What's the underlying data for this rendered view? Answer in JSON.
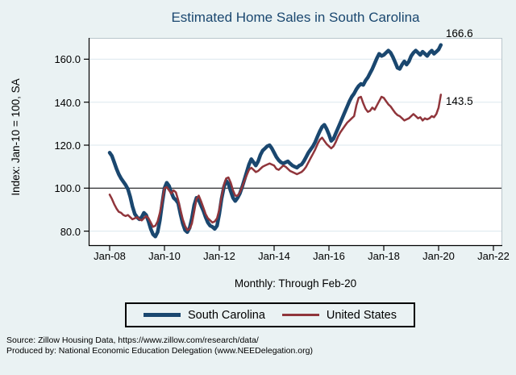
{
  "title": "Estimated Home Sales in South Carolina",
  "caption": "Monthly: Through Feb-20",
  "source": {
    "line1": "Source: Zillow Housing Data, https://www.zillow.com/research/data/",
    "line2": "Produced by: National Economic Education Delegation (www.NEEDelegation.org)"
  },
  "colors": {
    "background": "#eaf2f3",
    "plot_background": "#ffffff",
    "gridline": "#dbe7ee",
    "reference_line": "#1a1a1a",
    "axis": "#000000",
    "title": "#1a476f",
    "south_carolina": "#1a476f",
    "united_states": "#90353b"
  },
  "legend": {
    "items": [
      {
        "label": "South Carolina",
        "color": "#1a476f",
        "thickness": 5
      },
      {
        "label": "United States",
        "color": "#90353b",
        "thickness": 3
      }
    ]
  },
  "chart_data": {
    "type": "line",
    "title": "Estimated Home Sales in South Carolina",
    "xlabel": "",
    "ylabel": "Index: Jan-10 = 100, SA",
    "frequency": "monthly",
    "x_start": "Jan-2008",
    "x_end": "Feb-2020",
    "x_tick_labels": [
      "Jan-08",
      "Jan-10",
      "Jan-12",
      "Jan-14",
      "Jan-16",
      "Jan-18",
      "Jan-20",
      "Jan-22"
    ],
    "x_tick_month_index": [
      0,
      24,
      48,
      72,
      96,
      120,
      144,
      168
    ],
    "y_ticks": [
      80,
      100,
      120,
      140,
      160
    ],
    "y_tick_labels": [
      "80.0",
      "100.0",
      "120.0",
      "140.0",
      "160.0"
    ],
    "ylim": [
      73,
      170
    ],
    "grid": true,
    "reference_line_y": 100,
    "legend_position": "bottom",
    "end_labels": [
      "166.6",
      "143.5"
    ],
    "series": [
      {
        "name": "South Carolina",
        "color": "#1a476f",
        "width": 4.5,
        "values": [
          116.5,
          115.0,
          112.0,
          109.0,
          106.5,
          104.5,
          103.0,
          101.5,
          99.5,
          96.0,
          91.5,
          88.0,
          86.5,
          85.5,
          86.5,
          88.5,
          87.5,
          84.5,
          81.0,
          78.5,
          77.5,
          79.5,
          85.0,
          93.0,
          100.0,
          102.5,
          101.0,
          98.0,
          95.5,
          94.5,
          93.0,
          88.0,
          83.5,
          80.5,
          79.5,
          81.5,
          86.0,
          92.0,
          95.5,
          94.5,
          92.0,
          89.5,
          86.5,
          84.0,
          82.5,
          82.0,
          81.0,
          82.5,
          88.0,
          95.0,
          100.5,
          103.5,
          102.0,
          98.5,
          95.5,
          94.0,
          95.5,
          97.5,
          100.5,
          104.0,
          107.5,
          111.0,
          113.5,
          112.0,
          110.5,
          112.5,
          115.5,
          117.5,
          118.5,
          119.5,
          120.0,
          118.5,
          116.5,
          114.5,
          113.0,
          112.0,
          111.5,
          112.0,
          112.5,
          111.5,
          110.5,
          110.0,
          109.5,
          110.5,
          111.0,
          112.5,
          114.5,
          116.5,
          118.0,
          119.5,
          121.5,
          124.0,
          126.5,
          128.5,
          129.5,
          127.5,
          125.0,
          122.0,
          123.0,
          125.5,
          128.0,
          130.5,
          133.0,
          135.5,
          138.0,
          140.5,
          142.5,
          144.0,
          146.0,
          147.5,
          148.5,
          148.0,
          150.0,
          151.5,
          153.5,
          155.5,
          158.0,
          160.5,
          162.5,
          161.5,
          162.0,
          163.0,
          164.0,
          163.0,
          161.0,
          158.5,
          156.0,
          155.5,
          157.5,
          159.0,
          157.5,
          159.0,
          161.5,
          163.0,
          164.0,
          163.0,
          162.0,
          163.5,
          162.5,
          161.5,
          163.0,
          164.0,
          162.5,
          163.5,
          164.5,
          166.6
        ]
      },
      {
        "name": "United States",
        "color": "#90353b",
        "width": 2.5,
        "values": [
          97.0,
          95.0,
          92.5,
          90.5,
          89.0,
          88.5,
          87.5,
          87.0,
          87.5,
          86.5,
          85.5,
          86.0,
          86.5,
          85.5,
          85.0,
          86.0,
          87.0,
          86.0,
          84.0,
          82.0,
          82.5,
          84.5,
          88.5,
          94.0,
          100.0,
          100.5,
          99.0,
          97.5,
          99.0,
          98.0,
          94.5,
          90.0,
          85.5,
          82.5,
          80.5,
          81.0,
          83.5,
          89.0,
          95.0,
          96.5,
          94.0,
          91.0,
          88.0,
          86.0,
          85.0,
          84.0,
          84.5,
          86.0,
          90.0,
          96.0,
          101.5,
          104.5,
          105.0,
          102.5,
          99.0,
          96.5,
          96.5,
          98.0,
          100.5,
          103.5,
          106.0,
          108.5,
          109.5,
          108.5,
          107.5,
          108.0,
          109.0,
          110.0,
          110.5,
          111.0,
          111.5,
          111.0,
          110.5,
          109.0,
          108.5,
          109.5,
          110.5,
          110.0,
          109.0,
          108.0,
          107.5,
          107.0,
          106.5,
          107.0,
          107.5,
          108.5,
          110.0,
          112.0,
          114.0,
          116.0,
          118.0,
          120.5,
          122.5,
          123.5,
          122.0,
          120.5,
          119.5,
          118.5,
          119.5,
          121.5,
          124.0,
          126.0,
          127.5,
          129.0,
          130.5,
          131.5,
          132.5,
          133.5,
          138.5,
          142.0,
          142.5,
          139.5,
          137.0,
          135.5,
          136.0,
          137.5,
          136.5,
          138.5,
          140.5,
          142.5,
          142.0,
          140.5,
          139.0,
          138.0,
          136.5,
          135.0,
          134.0,
          133.5,
          132.5,
          131.5,
          132.0,
          132.5,
          133.5,
          134.5,
          133.5,
          132.5,
          133.0,
          131.5,
          132.5,
          132.0,
          132.5,
          133.5,
          133.0,
          134.5,
          137.5,
          143.5
        ]
      }
    ]
  }
}
